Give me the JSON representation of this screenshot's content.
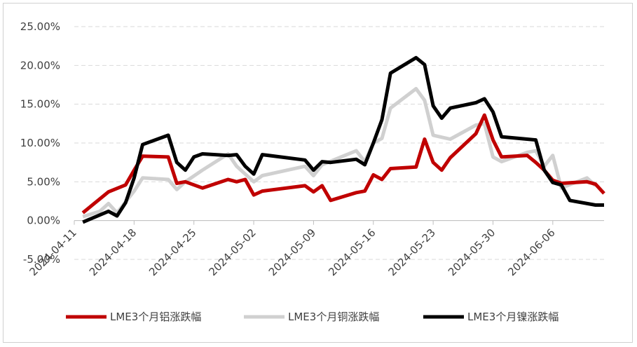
{
  "chart_data": {
    "type": "line",
    "title": "",
    "xlabel": "",
    "ylabel": "",
    "ylim": [
      -5,
      25
    ],
    "y_ticks": [
      "-5.00%",
      "0.00%",
      "5.00%",
      "10.00%",
      "15.00%",
      "20.00%",
      "25.00%"
    ],
    "y_tick_values": [
      -5,
      0,
      5,
      10,
      15,
      20,
      25
    ],
    "x_ticks": [
      "2024-04-11",
      "2024-04-18",
      "2024-04-25",
      "2024-05-02",
      "2024-05-09",
      "2024-05-16",
      "2024-05-23",
      "2024-05-30",
      "2024-06-06"
    ],
    "x_range": [
      "2024-04-11",
      "2024-06-12"
    ],
    "grid": "horizontal",
    "legend_position": "bottom",
    "series": [
      {
        "name": "LME3个月铝涨跌幅",
        "color": "#c00000",
        "points": [
          [
            "2024-04-12",
            1.0
          ],
          [
            "2024-04-15",
            3.7
          ],
          [
            "2024-04-17",
            4.6
          ],
          [
            "2024-04-18",
            6.5
          ],
          [
            "2024-04-19",
            8.3
          ],
          [
            "2024-04-22",
            8.2
          ],
          [
            "2024-04-23",
            4.8
          ],
          [
            "2024-04-24",
            5.0
          ],
          [
            "2024-04-26",
            4.2
          ],
          [
            "2024-04-29",
            5.3
          ],
          [
            "2024-04-30",
            5.0
          ],
          [
            "2024-05-01",
            5.3
          ],
          [
            "2024-05-02",
            3.3
          ],
          [
            "2024-05-03",
            3.8
          ],
          [
            "2024-05-08",
            4.5
          ],
          [
            "2024-05-09",
            3.7
          ],
          [
            "2024-05-10",
            4.5
          ],
          [
            "2024-05-11",
            2.6
          ],
          [
            "2024-05-14",
            3.6
          ],
          [
            "2024-05-15",
            3.8
          ],
          [
            "2024-05-16",
            5.9
          ],
          [
            "2024-05-17",
            5.3
          ],
          [
            "2024-05-18",
            6.7
          ],
          [
            "2024-05-21",
            6.9
          ],
          [
            "2024-05-22",
            10.5
          ],
          [
            "2024-05-23",
            7.5
          ],
          [
            "2024-05-24",
            6.5
          ],
          [
            "2024-05-25",
            8.1
          ],
          [
            "2024-05-28",
            11.2
          ],
          [
            "2024-05-29",
            13.6
          ],
          [
            "2024-05-30",
            10.4
          ],
          [
            "2024-05-31",
            8.2
          ],
          [
            "2024-06-03",
            8.4
          ],
          [
            "2024-06-04",
            7.5
          ],
          [
            "2024-06-05",
            6.5
          ],
          [
            "2024-06-06",
            5.2
          ],
          [
            "2024-06-07",
            4.8
          ],
          [
            "2024-06-10",
            5.0
          ],
          [
            "2024-06-11",
            4.7
          ],
          [
            "2024-06-12",
            3.5
          ]
        ]
      },
      {
        "name": "LME3个月铜涨跌幅",
        "color": "#d0d0d0",
        "points": [
          [
            "2024-04-12",
            0.5
          ],
          [
            "2024-04-14",
            1.2
          ],
          [
            "2024-04-15",
            2.2
          ],
          [
            "2024-04-16",
            1.0
          ],
          [
            "2024-04-18",
            3.8
          ],
          [
            "2024-04-19",
            5.5
          ],
          [
            "2024-04-22",
            5.3
          ],
          [
            "2024-04-23",
            4.0
          ],
          [
            "2024-04-24",
            5.0
          ],
          [
            "2024-04-26",
            6.5
          ],
          [
            "2024-04-29",
            8.6
          ],
          [
            "2024-04-30",
            7.0
          ],
          [
            "2024-05-01",
            6.0
          ],
          [
            "2024-05-02",
            5.0
          ],
          [
            "2024-05-03",
            5.8
          ],
          [
            "2024-05-08",
            7.0
          ],
          [
            "2024-05-09",
            5.8
          ],
          [
            "2024-05-10",
            7.2
          ],
          [
            "2024-05-14",
            9.0
          ],
          [
            "2024-05-15",
            7.6
          ],
          [
            "2024-05-16",
            10.0
          ],
          [
            "2024-05-17",
            10.6
          ],
          [
            "2024-05-18",
            14.5
          ],
          [
            "2024-05-21",
            17.0
          ],
          [
            "2024-05-22",
            15.5
          ],
          [
            "2024-05-23",
            11.0
          ],
          [
            "2024-05-25",
            10.5
          ],
          [
            "2024-05-28",
            12.3
          ],
          [
            "2024-05-29",
            12.5
          ],
          [
            "2024-05-30",
            8.2
          ],
          [
            "2024-05-31",
            7.6
          ],
          [
            "2024-06-03",
            8.8
          ],
          [
            "2024-06-04",
            9.0
          ],
          [
            "2024-06-05",
            7.0
          ],
          [
            "2024-06-06",
            8.4
          ],
          [
            "2024-06-07",
            4.2
          ],
          [
            "2024-06-10",
            5.5
          ],
          [
            "2024-06-11",
            4.5
          ]
        ]
      },
      {
        "name": "LME3个月镍涨跌幅",
        "color": "#000000",
        "points": [
          [
            "2024-04-12",
            -0.2
          ],
          [
            "2024-04-15",
            1.2
          ],
          [
            "2024-04-16",
            0.6
          ],
          [
            "2024-04-17",
            2.3
          ],
          [
            "2024-04-18",
            5.5
          ],
          [
            "2024-04-19",
            9.8
          ],
          [
            "2024-04-22",
            11.0
          ],
          [
            "2024-04-23",
            7.5
          ],
          [
            "2024-04-24",
            6.5
          ],
          [
            "2024-04-25",
            8.2
          ],
          [
            "2024-04-26",
            8.6
          ],
          [
            "2024-04-29",
            8.4
          ],
          [
            "2024-04-30",
            8.5
          ],
          [
            "2024-05-01",
            7.0
          ],
          [
            "2024-05-02",
            6.0
          ],
          [
            "2024-05-03",
            8.5
          ],
          [
            "2024-05-08",
            7.8
          ],
          [
            "2024-05-09",
            6.5
          ],
          [
            "2024-05-10",
            7.6
          ],
          [
            "2024-05-11",
            7.5
          ],
          [
            "2024-05-14",
            7.9
          ],
          [
            "2024-05-15",
            7.2
          ],
          [
            "2024-05-16",
            10.0
          ],
          [
            "2024-05-17",
            13.0
          ],
          [
            "2024-05-18",
            19.0
          ],
          [
            "2024-05-21",
            21.0
          ],
          [
            "2024-05-22",
            20.1
          ],
          [
            "2024-05-23",
            14.8
          ],
          [
            "2024-05-24",
            13.2
          ],
          [
            "2024-05-25",
            14.5
          ],
          [
            "2024-05-28",
            15.2
          ],
          [
            "2024-05-29",
            15.7
          ],
          [
            "2024-05-30",
            14.0
          ],
          [
            "2024-05-31",
            10.8
          ],
          [
            "2024-06-03",
            10.5
          ],
          [
            "2024-06-04",
            10.4
          ],
          [
            "2024-06-05",
            6.5
          ],
          [
            "2024-06-06",
            4.9
          ],
          [
            "2024-06-07",
            4.6
          ],
          [
            "2024-06-08",
            2.6
          ],
          [
            "2024-06-11",
            2.0
          ],
          [
            "2024-06-12",
            2.0
          ]
        ]
      }
    ]
  }
}
